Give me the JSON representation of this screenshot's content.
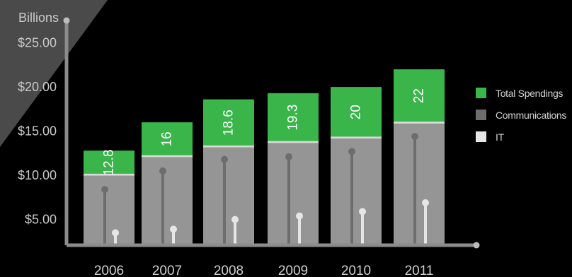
{
  "chart_data": {
    "type": "bar",
    "ylabel": "Billions",
    "categories": [
      "2006",
      "2007",
      "2008",
      "2009",
      "2010",
      "2011"
    ],
    "series": [
      {
        "name": "Total Spendings",
        "values": [
          12.8,
          16,
          18.6,
          19.3,
          20,
          22
        ]
      },
      {
        "name": "Communications",
        "values": [
          10.1,
          12.2,
          13.3,
          13.8,
          14.3,
          16.0
        ]
      },
      {
        "name": "IT",
        "values": [
          8.4,
          10.5,
          11.8,
          12.1,
          12.7,
          14.4
        ]
      }
    ],
    "it_lines": [
      3.5,
      3.9,
      5.0,
      5.4,
      5.9,
      6.9
    ],
    "ytick_labels": [
      "$5.00",
      "$10.00",
      "$15.00",
      "$20.00",
      "$25.00"
    ],
    "ytick_values": [
      5,
      10,
      15,
      20,
      25
    ],
    "ylim": [
      0,
      28
    ],
    "legend_position": "right",
    "grid": false,
    "colors": {
      "total": "#39b54a",
      "communications": "#6d6d6d",
      "it": "#e6e6e6",
      "bar_body": "#959595",
      "axis": "#8c8c8c",
      "background": "#000000",
      "corner_panel": "#4a4a4a"
    }
  }
}
